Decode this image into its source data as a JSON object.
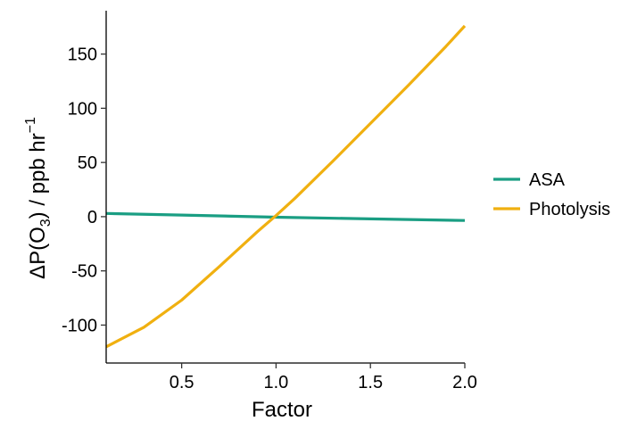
{
  "chart_data": {
    "type": "line",
    "title": "",
    "xlabel": "Factor",
    "ylabel_parts": {
      "prefix": "ΔP(O",
      "subscript": "3",
      "middle": ") / ppb hr",
      "superscript": "−1"
    },
    "xlim": [
      0.1,
      2.0
    ],
    "ylim": [
      -135,
      190
    ],
    "x_ticks": [
      {
        "value": 0.5,
        "label": "0.5"
      },
      {
        "value": 1.0,
        "label": "1.0"
      },
      {
        "value": 1.5,
        "label": "1.5"
      },
      {
        "value": 2.0,
        "label": "2.0"
      }
    ],
    "y_ticks": [
      {
        "value": -100,
        "label": "-100"
      },
      {
        "value": -50,
        "label": "-50"
      },
      {
        "value": 0,
        "label": "0"
      },
      {
        "value": 50,
        "label": "50"
      },
      {
        "value": 100,
        "label": "100"
      },
      {
        "value": 150,
        "label": "150"
      }
    ],
    "grid": false,
    "legend_position": "right",
    "series": [
      {
        "name": "ASA",
        "color": "#1a9e83",
        "x": [
          0.1,
          0.5,
          1.0,
          1.5,
          2.0
        ],
        "y": [
          3,
          1.5,
          -0.5,
          -2,
          -3.5
        ]
      },
      {
        "name": "Photolysis",
        "color": "#f0b010",
        "x": [
          0.1,
          0.3,
          0.5,
          0.7,
          0.9,
          1.0,
          1.1,
          1.3,
          1.5,
          1.7,
          1.9,
          2.0
        ],
        "y": [
          -120,
          -102,
          -77,
          -46,
          -14,
          1,
          17,
          51,
          86,
          121,
          157,
          176
        ]
      }
    ]
  }
}
